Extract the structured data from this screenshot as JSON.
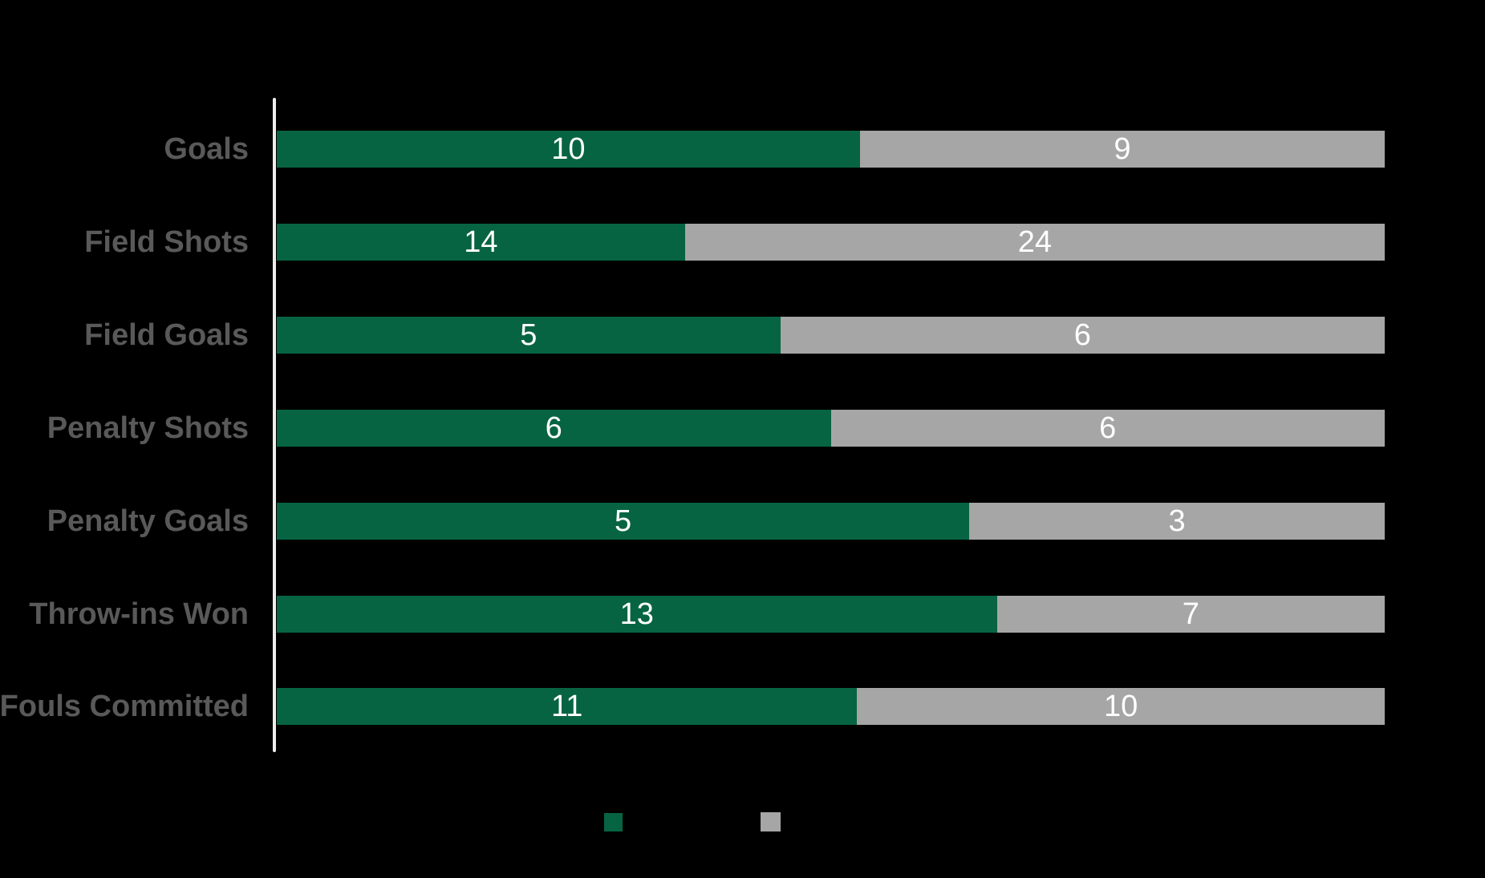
{
  "chart_data": {
    "type": "bar",
    "variant": "stacked-100",
    "orientation": "horizontal",
    "title": "",
    "xlabel": "",
    "ylabel": "",
    "grid": false,
    "background": "#000000",
    "axis_line_color": "#ededed",
    "category_label_color": "#595959",
    "value_label_color": "#ffffff",
    "value_labels_position": "inside-center",
    "legend_position": "bottom",
    "categories": [
      "Goals",
      "Field Shots",
      "Field Goals",
      "Penalty Shots",
      "Penalty Goals",
      "Throw-ins Won",
      "Fouls Committed"
    ],
    "series": [
      {
        "name": "",
        "color": "#076442",
        "values": [
          10,
          14,
          5,
          6,
          5,
          13,
          11
        ]
      },
      {
        "name": "",
        "color": "#a6a6a6",
        "values": [
          9,
          24,
          6,
          6,
          3,
          7,
          10
        ]
      }
    ]
  },
  "legend": {
    "items": [
      {
        "label": "",
        "color": "#076442"
      },
      {
        "label": "",
        "color": "#a6a6a6"
      }
    ]
  }
}
